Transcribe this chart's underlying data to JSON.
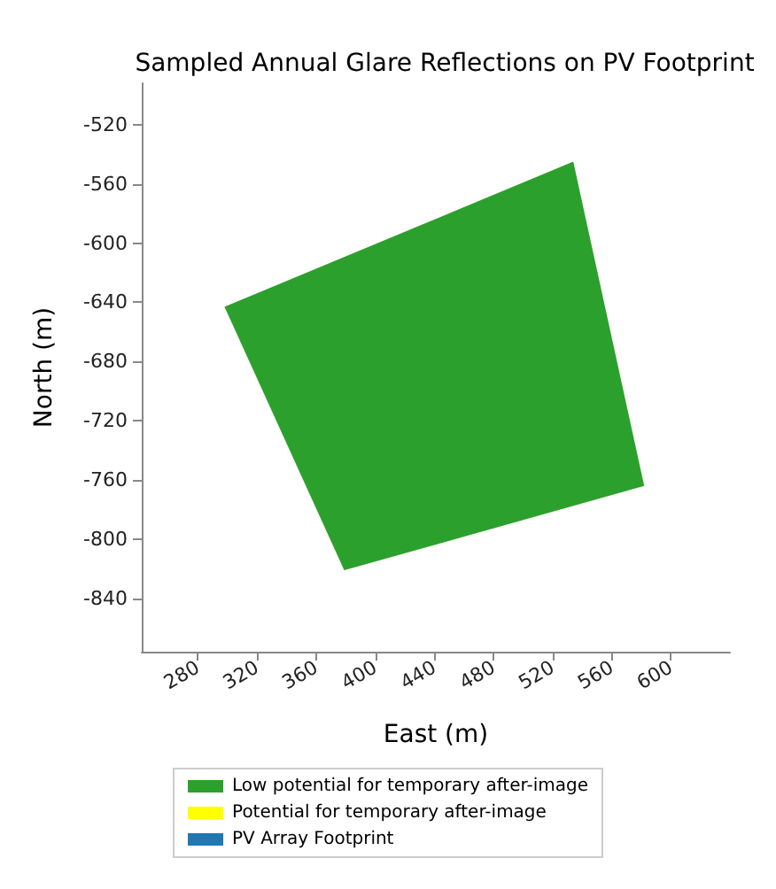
{
  "chart_data": {
    "type": "area",
    "title": "Sampled Annual Glare Reflections on PV Footprint",
    "xlabel": "East (m)",
    "ylabel": "North (m)",
    "series": [
      {
        "name": "Low potential for temporary after-image",
        "color": "#2ca02c",
        "x": [
          298,
          534,
          582,
          379
        ],
        "values": [
          -643,
          -545,
          -764,
          -821
        ]
      },
      {
        "name": "Potential for temporary after-image",
        "color": "#ffff00"
      },
      {
        "name": "PV Array Footprint",
        "color": "#1f77b4"
      }
    ],
    "xlim": [
      242,
      640
    ],
    "xticks": [
      280,
      320,
      360,
      400,
      440,
      480,
      520,
      560,
      600
    ],
    "ylim": [
      -876,
      -492
    ],
    "yticks": [
      -520,
      -560,
      -600,
      -640,
      -680,
      -720,
      -760,
      -800,
      -840
    ],
    "grid": false,
    "legend": "bottom"
  }
}
